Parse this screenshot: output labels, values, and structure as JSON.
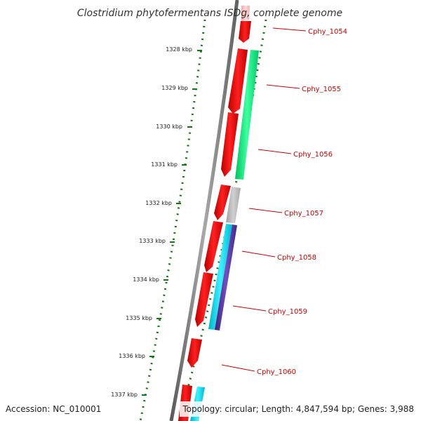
{
  "title": "Clostridium phytofermentans ISDg, complete genome",
  "accession_text": "Accession: NC_010001",
  "topology_text": "Topology: circular; Length: 4,847,594 bp; Genes: 3,988",
  "ruler": {
    "ticks": [
      {
        "label": "1328 kbp",
        "kbp": 1328
      },
      {
        "label": "1329 kbp",
        "kbp": 1329
      },
      {
        "label": "1330 kbp",
        "kbp": 1330
      },
      {
        "label": "1331 kbp",
        "kbp": 1331
      },
      {
        "label": "1332 kbp",
        "kbp": 1332
      },
      {
        "label": "1333 kbp",
        "kbp": 1333
      },
      {
        "label": "1334 kbp",
        "kbp": 1334
      },
      {
        "label": "1335 kbp",
        "kbp": 1335
      },
      {
        "label": "1336 kbp",
        "kbp": 1336
      },
      {
        "label": "1337 kbp",
        "kbp": 1337
      }
    ]
  },
  "gene_labels": [
    {
      "label": "Cphy_1054"
    },
    {
      "label": "Cphy_1055"
    },
    {
      "label": "Cphy_1056"
    },
    {
      "label": "Cphy_1057"
    },
    {
      "label": "Cphy_1058"
    },
    {
      "label": "Cphy_1059"
    },
    {
      "label": "Cphy_1060"
    }
  ],
  "colors": {
    "backbone": "#808080",
    "cds": "#ff0000",
    "cds_faded": "#ffc8c8",
    "cog_green": "#00e67a",
    "cog_grey": "#b8b8b8",
    "cog_cyan": "#00d8e8",
    "cog_purple": "#5a3a9a",
    "gc_dots": "#117711",
    "label": "#cc0000"
  }
}
